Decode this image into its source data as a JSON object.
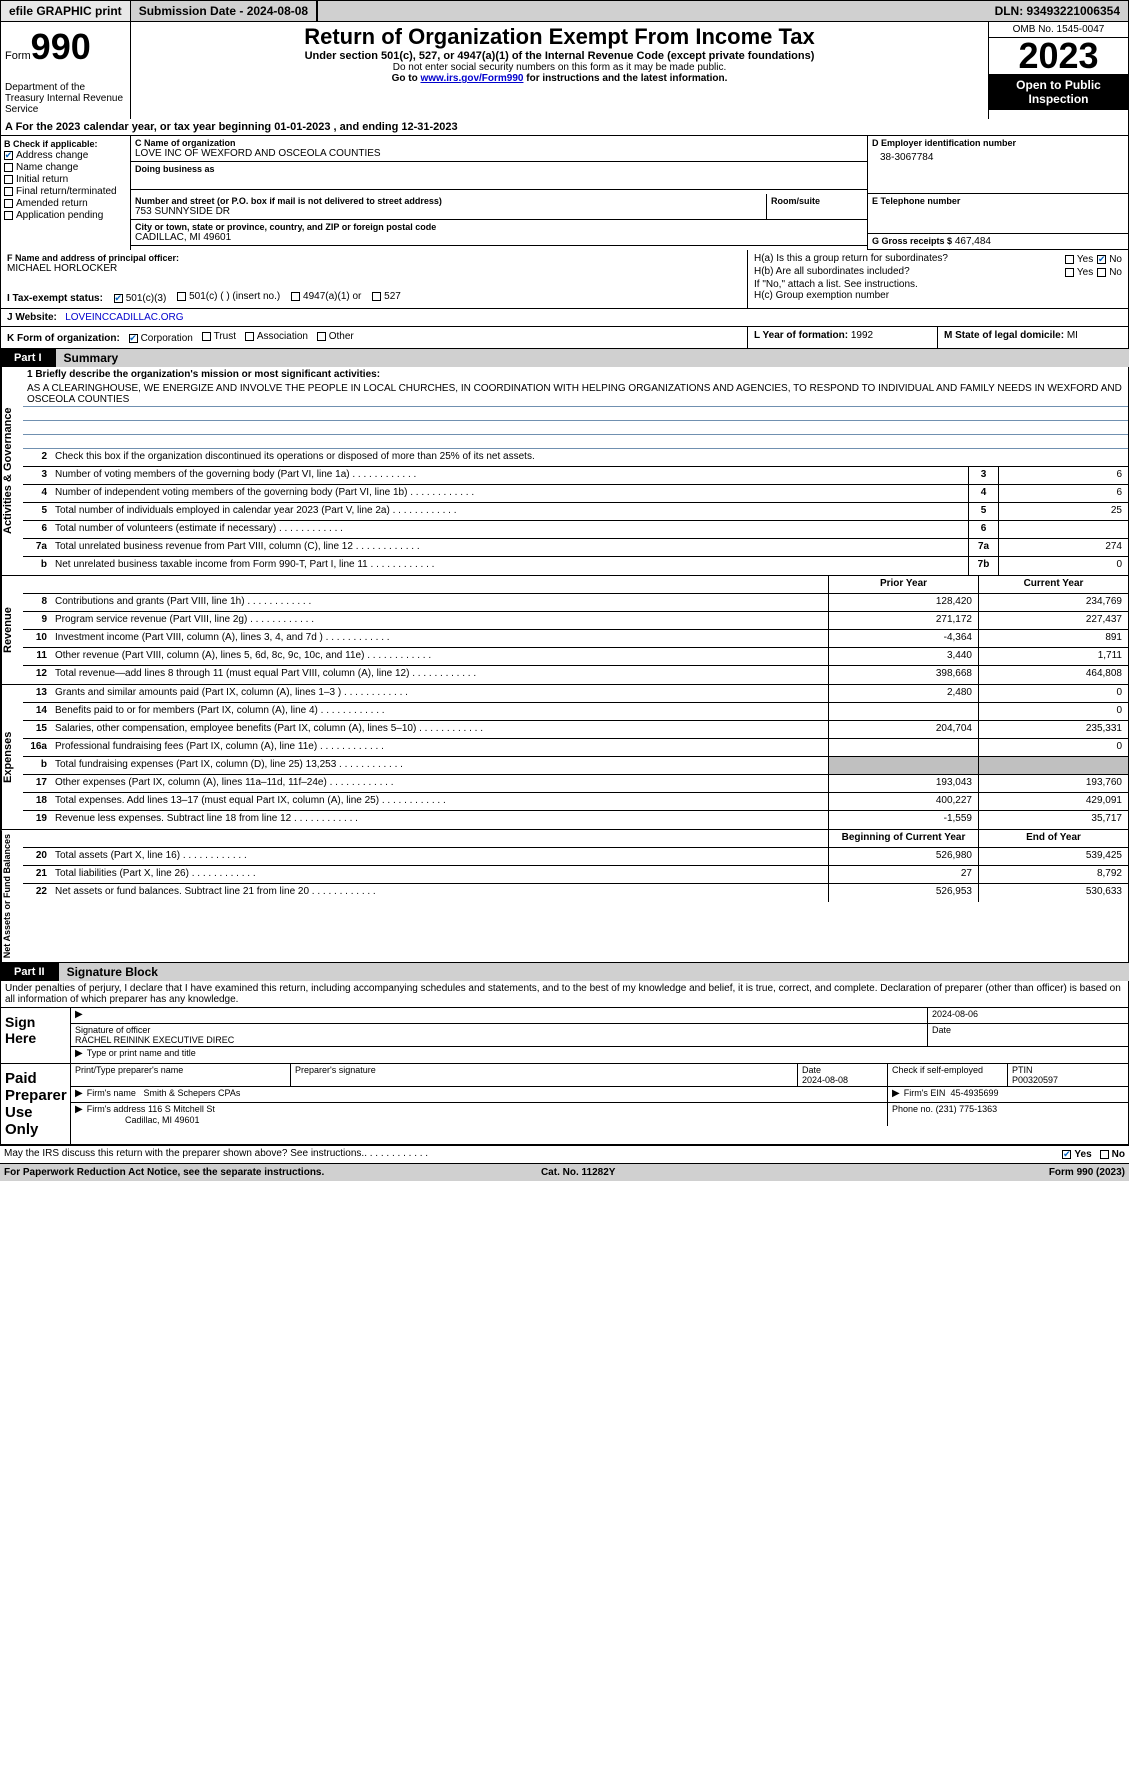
{
  "topbar": {
    "efile": "efile GRAPHIC print",
    "submission": "Submission Date - 2024-08-08",
    "dln": "DLN: 93493221006354"
  },
  "header": {
    "form_word": "Form",
    "form_num": "990",
    "dept": "Department of the Treasury Internal Revenue Service",
    "title": "Return of Organization Exempt From Income Tax",
    "sub": "Under section 501(c), 527, or 4947(a)(1) of the Internal Revenue Code (except private foundations)",
    "nossn": "Do not enter social security numbers on this form as it may be made public.",
    "goto_pre": "Go to ",
    "goto_link": "www.irs.gov/Form990",
    "goto_post": " for instructions and the latest information.",
    "omb": "OMB No. 1545-0047",
    "year": "2023",
    "inspect": "Open to Public Inspection"
  },
  "line_a": "A  For the 2023 calendar year, or tax year beginning 01-01-2023   , and ending 12-31-2023",
  "box_b": {
    "label": "B Check if applicable:",
    "items": [
      {
        "label": "Address change",
        "checked": true
      },
      {
        "label": "Name change",
        "checked": false
      },
      {
        "label": "Initial return",
        "checked": false
      },
      {
        "label": "Final return/terminated",
        "checked": false
      },
      {
        "label": "Amended return",
        "checked": false
      },
      {
        "label": "Application pending",
        "checked": false
      }
    ]
  },
  "box_c": {
    "name_lbl": "C Name of organization",
    "name": "LOVE INC OF WEXFORD AND OSCEOLA COUNTIES",
    "dba_lbl": "Doing business as",
    "dba": "",
    "street_lbl": "Number and street (or P.O. box if mail is not delivered to street address)",
    "street": "753 SUNNYSIDE DR",
    "suite_lbl": "Room/suite",
    "city_lbl": "City or town, state or province, country, and ZIP or foreign postal code",
    "city": "CADILLAC, MI  49601"
  },
  "box_d": {
    "lbl": "D Employer identification number",
    "val": "38-3067784"
  },
  "box_e": {
    "lbl": "E Telephone number",
    "val": ""
  },
  "box_g": {
    "lbl": "G Gross receipts $",
    "val": "467,484"
  },
  "box_f": {
    "lbl": "F  Name and address of principal officer:",
    "val": "MICHAEL HORLOCKER"
  },
  "box_h": {
    "a_lbl": "H(a)  Is this a group return for subordinates?",
    "a_yes": "Yes",
    "a_no": "No",
    "b_lbl": "H(b)  Are all subordinates included?",
    "b_yes": "Yes",
    "b_no": "No",
    "b_note": "If \"No,\" attach a list. See instructions.",
    "c_lbl": "H(c)  Group exemption number"
  },
  "box_i": {
    "lbl": "I    Tax-exempt status:",
    "opts": [
      "501(c)(3)",
      "501(c) ( ) (insert no.)",
      "4947(a)(1) or",
      "527"
    ]
  },
  "box_j": {
    "lbl": "J   Website:",
    "val": "LOVEINCCADILLAC.ORG"
  },
  "box_k": {
    "lbl": "K Form of organization:",
    "opts": [
      "Corporation",
      "Trust",
      "Association",
      "Other"
    ]
  },
  "box_l": {
    "lbl": "L Year of formation:",
    "val": "1992"
  },
  "box_m": {
    "lbl": "M State of legal domicile:",
    "val": "MI"
  },
  "parts": {
    "p1": {
      "num": "Part I",
      "title": "Summary"
    },
    "p2": {
      "num": "Part II",
      "title": "Signature Block"
    }
  },
  "summary": {
    "sections": [
      {
        "vlabel": "Activities & Governance",
        "mission_lbl": "1  Briefly describe the organization's mission or most significant activities:",
        "mission": "AS A CLEARINGHOUSE, WE ENERGIZE AND INVOLVE THE PEOPLE IN LOCAL CHURCHES, IN COORDINATION WITH HELPING ORGANIZATIONS AND AGENCIES, TO RESPOND TO INDIVIDUAL AND FAMILY NEEDS IN WEXFORD AND OSCEOLA COUNTIES",
        "l2": "Check this box      if the organization discontinued its operations or disposed of more than 25% of its net assets.",
        "rows_small": [
          {
            "n": "3",
            "t": "Number of voting members of the governing body (Part VI, line 1a)",
            "box": "3",
            "v": "6"
          },
          {
            "n": "4",
            "t": "Number of independent voting members of the governing body (Part VI, line 1b)",
            "box": "4",
            "v": "6"
          },
          {
            "n": "5",
            "t": "Total number of individuals employed in calendar year 2023 (Part V, line 2a)",
            "box": "5",
            "v": "25"
          },
          {
            "n": "6",
            "t": "Total number of volunteers (estimate if necessary)",
            "box": "6",
            "v": ""
          },
          {
            "n": "7a",
            "t": "Total unrelated business revenue from Part VIII, column (C), line 12",
            "box": "7a",
            "v": "274"
          },
          {
            "n": "b",
            "t": "Net unrelated business taxable income from Form 990-T, Part I, line 11",
            "box": "7b",
            "v": "0"
          }
        ]
      },
      {
        "vlabel": "Revenue",
        "hdr_prior": "Prior Year",
        "hdr_curr": "Current Year",
        "rows": [
          {
            "n": "8",
            "t": "Contributions and grants (Part VIII, line 1h)",
            "p": "128,420",
            "c": "234,769"
          },
          {
            "n": "9",
            "t": "Program service revenue (Part VIII, line 2g)",
            "p": "271,172",
            "c": "227,437"
          },
          {
            "n": "10",
            "t": "Investment income (Part VIII, column (A), lines 3, 4, and 7d )",
            "p": "-4,364",
            "c": "891"
          },
          {
            "n": "11",
            "t": "Other revenue (Part VIII, column (A), lines 5, 6d, 8c, 9c, 10c, and 11e)",
            "p": "3,440",
            "c": "1,711"
          },
          {
            "n": "12",
            "t": "Total revenue—add lines 8 through 11 (must equal Part VIII, column (A), line 12)",
            "p": "398,668",
            "c": "464,808"
          }
        ]
      },
      {
        "vlabel": "Expenses",
        "rows": [
          {
            "n": "13",
            "t": "Grants and similar amounts paid (Part IX, column (A), lines 1–3 )",
            "p": "2,480",
            "c": "0"
          },
          {
            "n": "14",
            "t": "Benefits paid to or for members (Part IX, column (A), line 4)",
            "p": "",
            "c": "0"
          },
          {
            "n": "15",
            "t": "Salaries, other compensation, employee benefits (Part IX, column (A), lines 5–10)",
            "p": "204,704",
            "c": "235,331"
          },
          {
            "n": "16a",
            "t": "Professional fundraising fees (Part IX, column (A), line 11e)",
            "p": "",
            "c": "0"
          },
          {
            "n": "b",
            "t": "Total fundraising expenses (Part IX, column (D), line 25) 13,253",
            "p": "SHADE",
            "c": "SHADE"
          },
          {
            "n": "17",
            "t": "Other expenses (Part IX, column (A), lines 11a–11d, 11f–24e)",
            "p": "193,043",
            "c": "193,760"
          },
          {
            "n": "18",
            "t": "Total expenses. Add lines 13–17 (must equal Part IX, column (A), line 25)",
            "p": "400,227",
            "c": "429,091"
          },
          {
            "n": "19",
            "t": "Revenue less expenses. Subtract line 18 from line 12",
            "p": "-1,559",
            "c": "35,717"
          }
        ]
      },
      {
        "vlabel": "Net Assets or Fund Balances",
        "hdr_prior": "Beginning of Current Year",
        "hdr_curr": "End of Year",
        "rows": [
          {
            "n": "20",
            "t": "Total assets (Part X, line 16)",
            "p": "526,980",
            "c": "539,425"
          },
          {
            "n": "21",
            "t": "Total liabilities (Part X, line 26)",
            "p": "27",
            "c": "8,792"
          },
          {
            "n": "22",
            "t": "Net assets or fund balances. Subtract line 21 from line 20",
            "p": "526,953",
            "c": "530,633"
          }
        ]
      }
    ]
  },
  "sig": {
    "penalty": "Under penalties of perjury, I declare that I have examined this return, including accompanying schedules and statements, and to the best of my knowledge and belief, it is true, correct, and complete. Declaration of preparer (other than officer) is based on all information of which preparer has any knowledge.",
    "sign_here": "Sign Here",
    "date1": "2024-08-06",
    "sig_officer_lbl": "Signature of officer",
    "officer": "RACHEL REININK EXECUTIVE DIREC",
    "type_lbl": "Type or print name and title",
    "date_lbl": "Date",
    "paid": "Paid Preparer Use Only",
    "prep_name_lbl": "Print/Type preparer's name",
    "prep_sig_lbl": "Preparer's signature",
    "prep_date": "2024-08-08",
    "chk_lbl": "Check        if self-employed",
    "ptin_lbl": "PTIN",
    "ptin": "P00320597",
    "firm_name_lbl": "Firm's name",
    "firm_name": "Smith & Schepers CPAs",
    "firm_ein_lbl": "Firm's EIN",
    "firm_ein": "45-4935699",
    "firm_addr_lbl": "Firm's address",
    "firm_addr1": "116 S Mitchell St",
    "firm_addr2": "Cadillac, MI  49601",
    "phone_lbl": "Phone no.",
    "phone": "(231) 775-1363"
  },
  "footer": {
    "discuss": "May the IRS discuss this return with the preparer shown above? See instructions.",
    "yes": "Yes",
    "no": "No",
    "paperwork": "For Paperwork Reduction Act Notice, see the separate instructions.",
    "cat": "Cat. No. 11282Y",
    "form": "Form 990 (2023)"
  }
}
